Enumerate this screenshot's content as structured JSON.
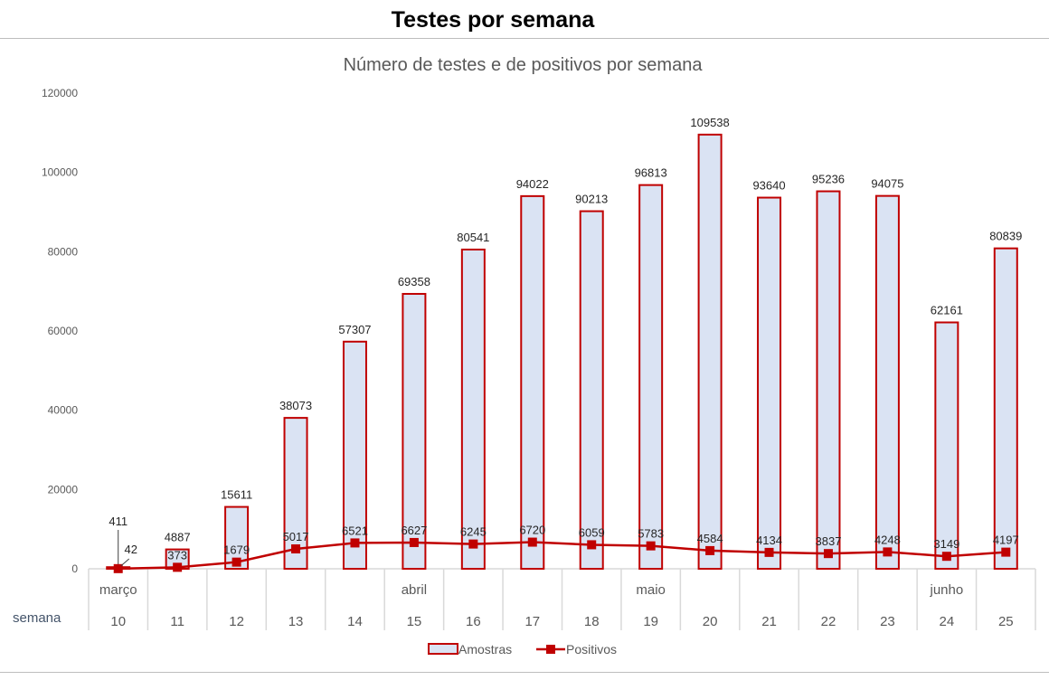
{
  "page_title": "Testes por semana",
  "chart_data": {
    "type": "bar+line",
    "title": "Número de testes e de positivos por semana",
    "xlabel": "semana",
    "ylabel": "",
    "ylim": [
      0,
      120000
    ],
    "yticks": [
      0,
      20000,
      40000,
      60000,
      80000,
      100000,
      120000
    ],
    "grid": false,
    "legend_position": "bottom",
    "categories": [
      "10",
      "11",
      "12",
      "13",
      "14",
      "15",
      "16",
      "17",
      "18",
      "19",
      "20",
      "21",
      "22",
      "23",
      "24",
      "25"
    ],
    "month_labels": {
      "10": "março",
      "15": "abril",
      "19": "maio",
      "24": "junho"
    },
    "series": [
      {
        "name": "Amostras",
        "type": "bar",
        "color": "#c00000",
        "fill": "#dae3f3",
        "values": [
          411,
          4887,
          15611,
          38073,
          57307,
          69358,
          80541,
          94022,
          90213,
          96813,
          109538,
          93640,
          95236,
          94075,
          62161,
          80839
        ]
      },
      {
        "name": "Positivos",
        "type": "line",
        "color": "#c00000",
        "values": [
          42,
          373,
          1679,
          5017,
          6521,
          6627,
          6245,
          6720,
          6059,
          5783,
          4584,
          4134,
          3837,
          4248,
          3149,
          4197
        ]
      }
    ]
  }
}
